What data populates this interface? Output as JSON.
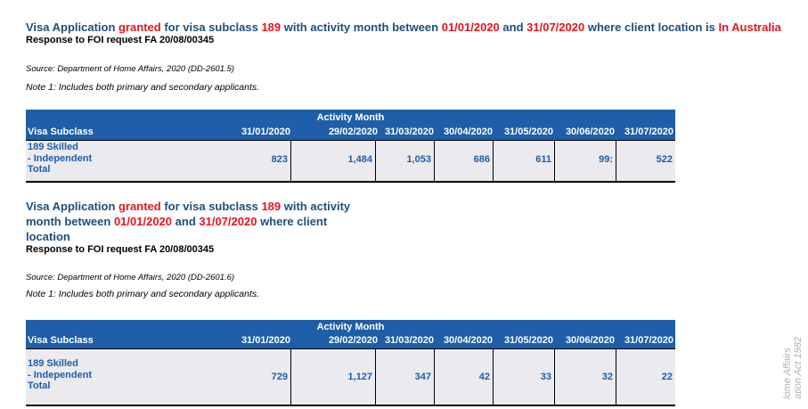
{
  "section1": {
    "title": {
      "p1": "Visa Application ",
      "p2": "granted",
      "p3": " for visa subclass ",
      "p4": "189",
      "p5": " with activity month between ",
      "p6": "01/01/2020",
      "p7": " and ",
      "p8": "31/07/2020",
      "p9": " where client location is ",
      "p10": "In Australia"
    },
    "subtitle": "Response to FOI request FA 20/08/00345",
    "source": "Source: Department of Home Affairs, 2020 (DD-2601.5)",
    "note": "Note 1: Includes both primary and secondary applicants.",
    "table": {
      "group_header": "Activity Month",
      "col0": "Visa Subclass",
      "columns": [
        "31/01/2020",
        "29/02/2020",
        "31/03/2020",
        "30/04/2020",
        "31/05/2020",
        "30/06/2020",
        "31/07/2020"
      ],
      "row_label": [
        "189 Skilled",
        "- Independent",
        "Total"
      ],
      "values": [
        "823",
        "1,484",
        "1,053",
        "686",
        "611",
        "99:",
        "522"
      ]
    }
  },
  "section2": {
    "title": {
      "p1": "Visa Application ",
      "p2": "granted",
      "p3": " for visa subclass ",
      "p4": "189",
      "p5": " with activity",
      "p6": "month between ",
      "p7": "01/01/2020",
      "p8": " and ",
      "p9": "31/07/2020",
      "p10": " where client",
      "p11": "location"
    },
    "subtitle": "Response to FOI request FA 20/08/00345",
    "source": "Source: Department of Home Affairs, 2020 (DD-2601.6)",
    "note": "Note 1: Includes both primary and secondary applicants.",
    "table": {
      "group_header": "Activity Month",
      "col0": "Visa Subclass",
      "columns": [
        "31/01/2020",
        "29/02/2020",
        "31/03/2020",
        "30/04/2020",
        "31/05/2020",
        "30/06/2020",
        "31/07/2020"
      ],
      "row_label": [
        "189 Skilled",
        "- Independent",
        "Total"
      ],
      "values": [
        "729",
        "1,127",
        "347",
        "42",
        "33",
        "32",
        "22"
      ]
    }
  },
  "watermark": [
    "lome Affairs",
    "ation Act 1982"
  ]
}
